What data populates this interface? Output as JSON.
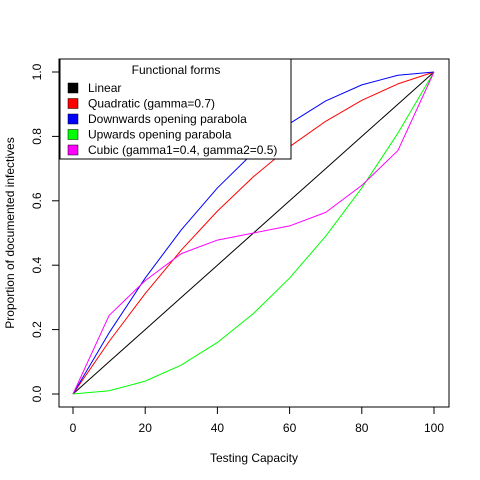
{
  "chart_data": {
    "type": "line",
    "xlabel": "Testing Capacity",
    "ylabel": "Proportion of documented infectives",
    "xlim": [
      0,
      100
    ],
    "ylim": [
      0,
      1
    ],
    "x_ticks": [
      0,
      20,
      40,
      60,
      80,
      100
    ],
    "y_ticks": [
      0.0,
      0.2,
      0.4,
      0.6,
      0.8,
      1.0
    ],
    "x_tick_labels": [
      "0",
      "20",
      "40",
      "60",
      "80",
      "100"
    ],
    "y_tick_labels": [
      "0.0",
      "0.2",
      "0.4",
      "0.6",
      "0.8",
      "1.0"
    ],
    "grid": false,
    "legend": {
      "title": "Functional forms",
      "position": "top-left"
    },
    "x": [
      0,
      10,
      20,
      30,
      40,
      50,
      60,
      70,
      80,
      90,
      100
    ],
    "series": [
      {
        "name": "Linear",
        "color": "#000000",
        "values": [
          0.0,
          0.1,
          0.2,
          0.3,
          0.4,
          0.5,
          0.6,
          0.7,
          0.8,
          0.9,
          1.0
        ]
      },
      {
        "name": "Quadratic (gamma=0.7)",
        "color": "#ff0000",
        "values": [
          0.0,
          0.163,
          0.312,
          0.447,
          0.568,
          0.675,
          0.768,
          0.847,
          0.912,
          0.963,
          1.0
        ]
      },
      {
        "name": "Downwards opening parabola",
        "color": "#0000ff",
        "values": [
          0.0,
          0.19,
          0.36,
          0.51,
          0.64,
          0.75,
          0.84,
          0.91,
          0.96,
          0.99,
          1.0
        ]
      },
      {
        "name": "Upwards opening parabola",
        "color": "#00ff00",
        "values": [
          0.0,
          0.01,
          0.04,
          0.09,
          0.16,
          0.25,
          0.36,
          0.49,
          0.64,
          0.81,
          1.0
        ]
      },
      {
        "name": "Cubic (gamma1=0.4, gamma2=0.5)",
        "color": "#ff00ff",
        "values": [
          0.0,
          0.244,
          0.352,
          0.436,
          0.478,
          0.5,
          0.522,
          0.564,
          0.648,
          0.756,
          1.0
        ]
      }
    ]
  }
}
